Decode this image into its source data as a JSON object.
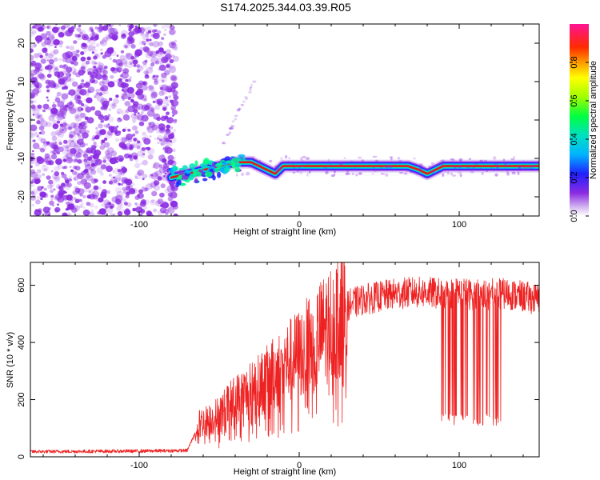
{
  "title": "S174.2025.344.03.39.R05",
  "chart_data": [
    {
      "type": "heatmap",
      "xlabel": "Height of straight line (km)",
      "ylabel": "Frequency (Hz)",
      "xlim": [
        -168,
        150
      ],
      "ylim": [
        -25,
        25
      ],
      "xticks": [
        -100,
        0,
        100
      ],
      "yticks": [
        -20,
        -10,
        0,
        10,
        20
      ],
      "colorbar": {
        "label": "Normalized spectral amplitude",
        "range": [
          0,
          1
        ],
        "ticks": [
          0.0,
          0.2,
          0.4,
          0.6,
          0.8
        ]
      },
      "features": {
        "noise_region_x": [
          -168,
          -77
        ],
        "carrier_track": [
          [
            -80,
            -15
          ],
          [
            -70,
            -14
          ],
          [
            -60,
            -13
          ],
          [
            -50,
            -12
          ],
          [
            -40,
            -11
          ],
          [
            -30,
            -11
          ],
          [
            -20,
            -13
          ],
          [
            -15,
            -14
          ],
          [
            -10,
            -12
          ],
          [
            0,
            -12
          ],
          [
            20,
            -12
          ],
          [
            40,
            -12
          ],
          [
            68,
            -12
          ],
          [
            75,
            -13
          ],
          [
            80,
            -14
          ],
          [
            85,
            -13
          ],
          [
            90,
            -12
          ],
          [
            110,
            -12
          ],
          [
            150,
            -12
          ]
        ],
        "faint_streak": [
          [
            -48,
            -7
          ],
          [
            -38,
            2
          ],
          [
            -28,
            10
          ]
        ]
      },
      "colors": {
        "noise": "#8a2be2",
        "track_core": "#e8171b"
      }
    },
    {
      "type": "line",
      "xlabel": "Height of straight line (km)",
      "ylabel": "SNR (10 * v/v)",
      "xlim": [
        -168,
        150
      ],
      "ylim": [
        0,
        680
      ],
      "xticks": [
        -100,
        0,
        100
      ],
      "yticks": [
        0,
        200,
        400,
        600
      ],
      "series": [
        {
          "color": "#ee2222",
          "envelope_points": [
            [
              -168,
              18
            ],
            [
              -100,
              20
            ],
            [
              -70,
              22
            ],
            [
              -62,
              120
            ],
            [
              -55,
              130
            ],
            [
              -50,
              150
            ],
            [
              -40,
              200
            ],
            [
              -30,
              230
            ],
            [
              -20,
              270
            ],
            [
              -10,
              320
            ],
            [
              0,
              360
            ],
            [
              10,
              410
            ],
            [
              20,
              470
            ],
            [
              30,
              530
            ],
            [
              40,
              550
            ],
            [
              50,
              560
            ],
            [
              60,
              570
            ],
            [
              70,
              575
            ],
            [
              80,
              575
            ],
            [
              90,
              570
            ],
            [
              100,
              575
            ],
            [
              110,
              565
            ],
            [
              120,
              570
            ],
            [
              130,
              570
            ],
            [
              140,
              560
            ],
            [
              150,
              550
            ]
          ],
          "dropouts": {
            "x_range": [
              88,
              126
            ],
            "min_value": 110
          }
        }
      ]
    }
  ]
}
